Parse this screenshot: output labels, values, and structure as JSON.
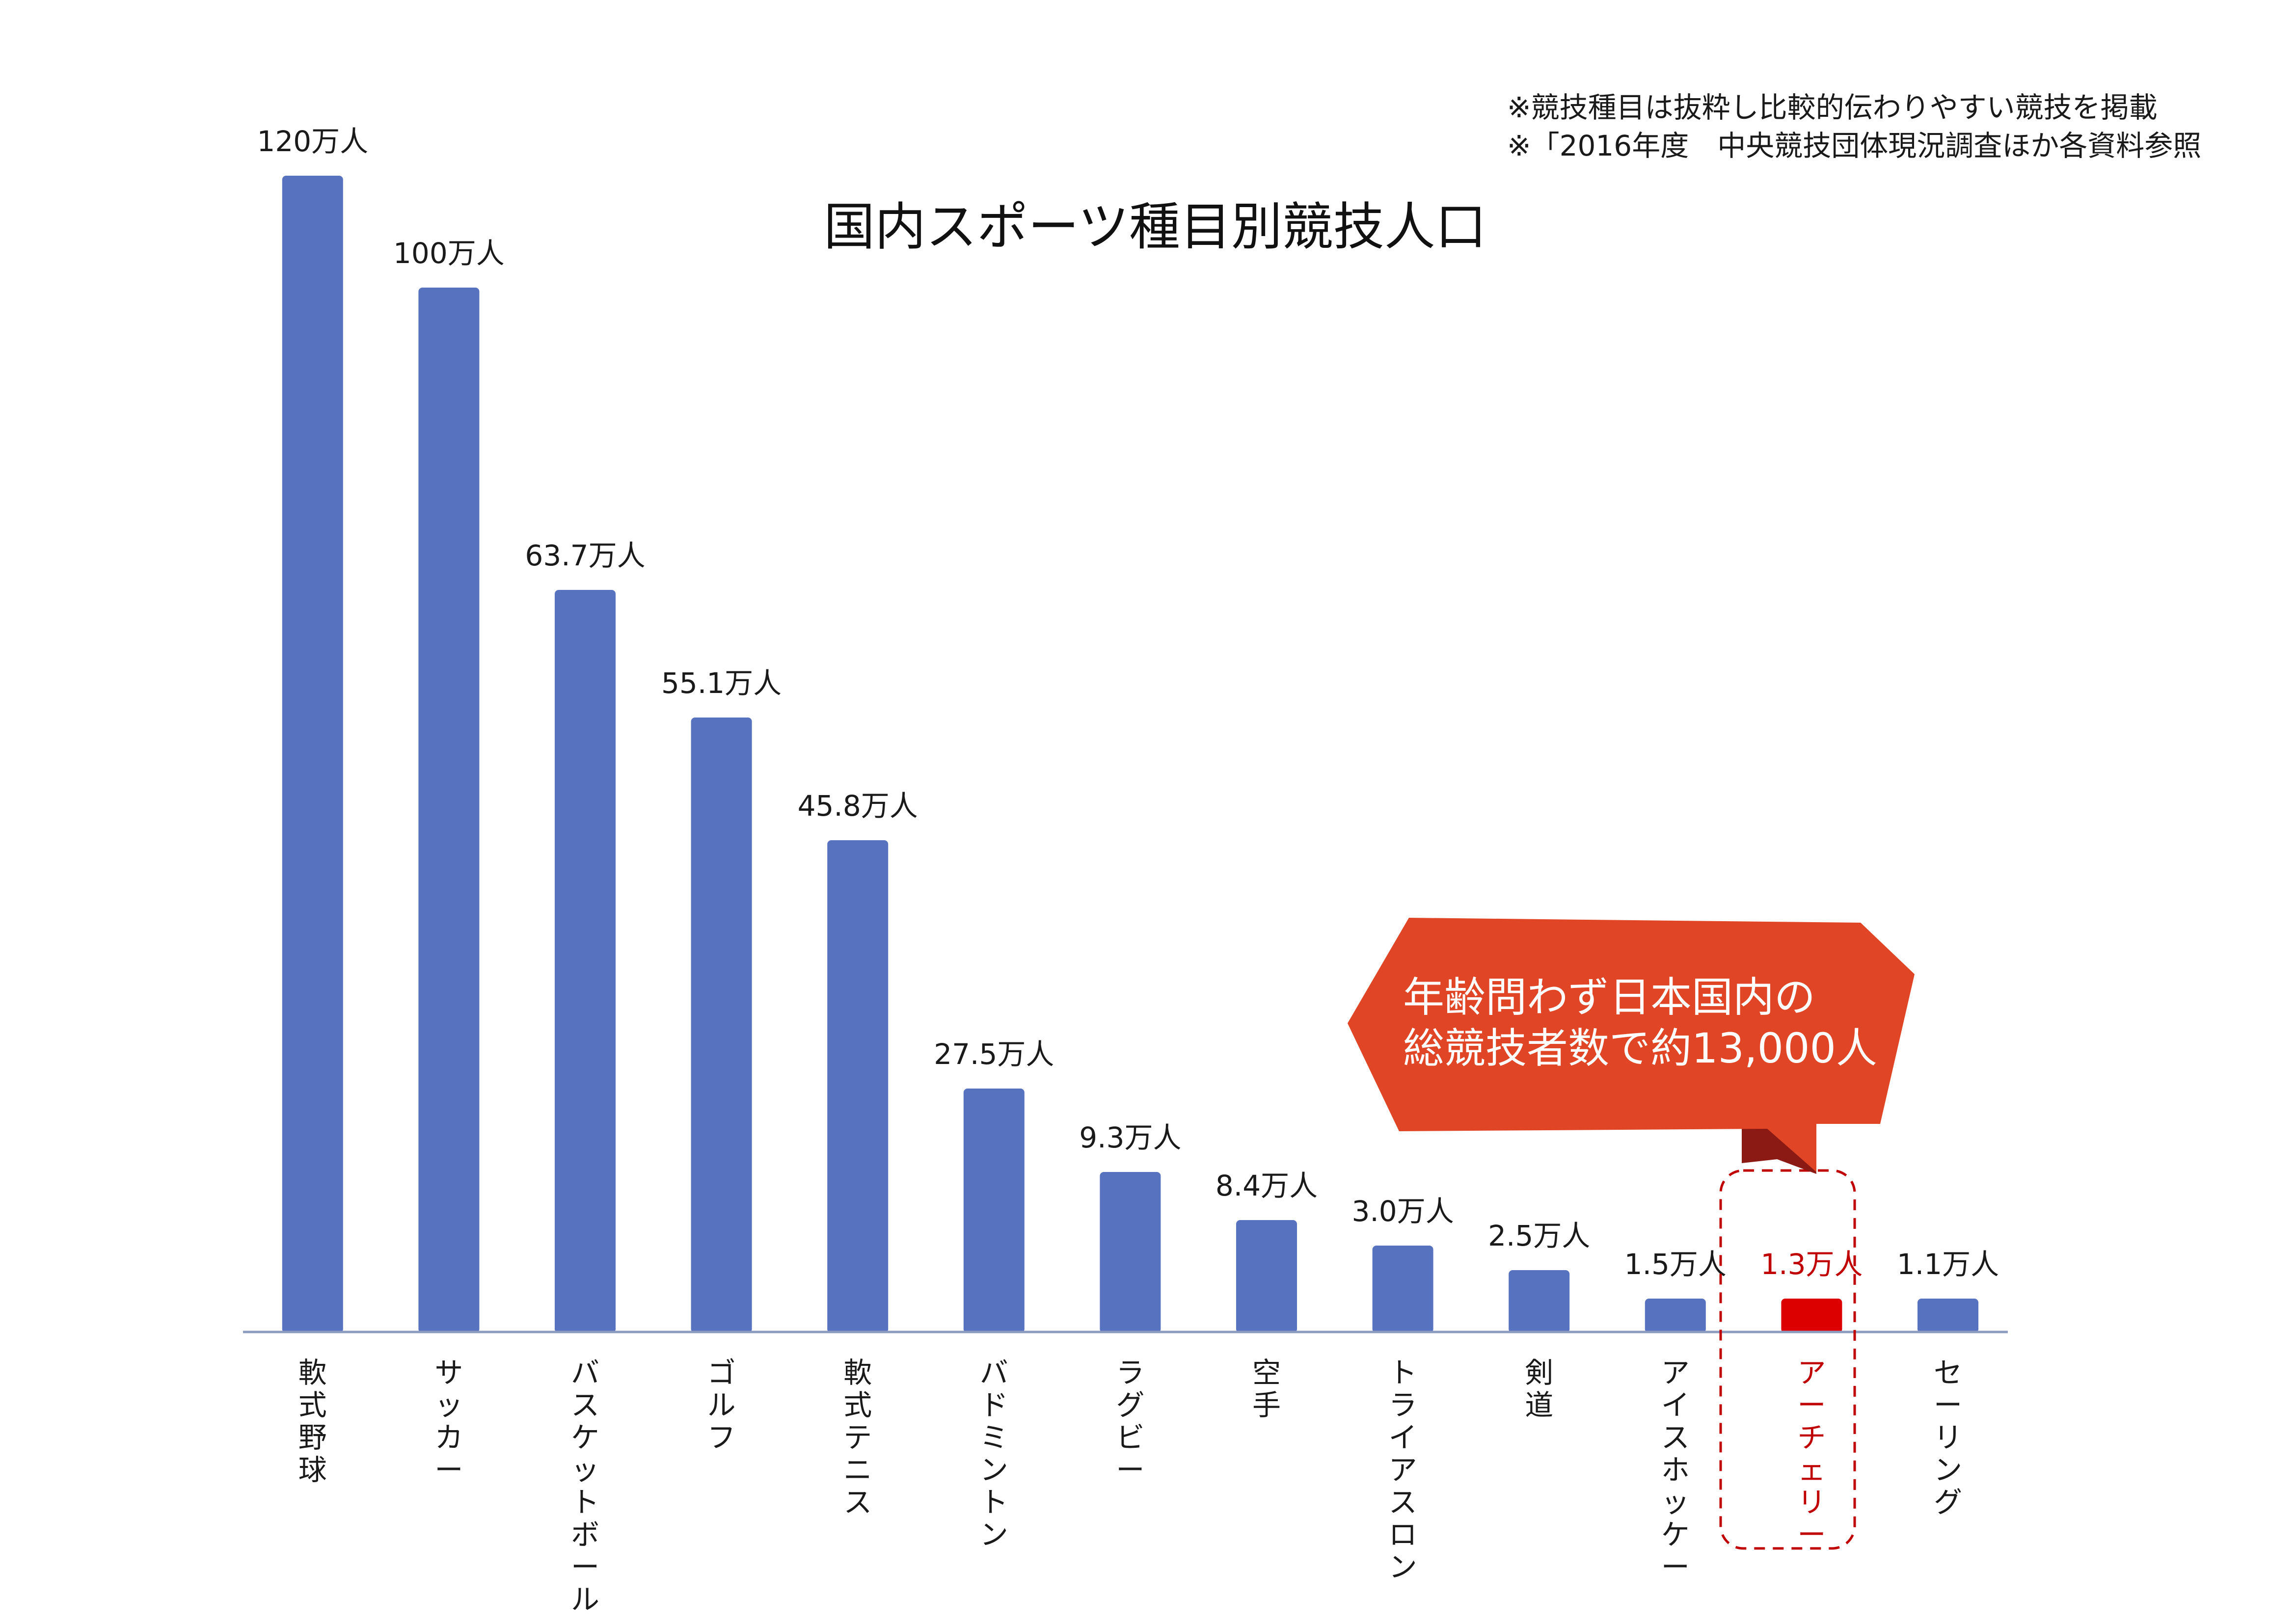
{
  "colors": {
    "bar": "#5773c0",
    "highlight_bar": "#dd0000",
    "highlight_text": "#c00000",
    "axis": "#8c9bbf",
    "callout": "#e04626",
    "callout_shadow": "#8b1a14",
    "dashed_frame": "#c00000"
  },
  "notes": [
    "※競技種目は抜粋し比較的伝わりやすい競技を掲載",
    "※「2016年度　中央競技団体現況調査ほか各資料参照"
  ],
  "callout": {
    "line1": "年齢問わず日本国内の",
    "line2": "総競技者数で約13,000人"
  },
  "chart_data": {
    "type": "bar",
    "title": "国内スポーツ種目別競技人口",
    "categories": [
      "軟式野球",
      "サッカー",
      "バスケットボール",
      "ゴルフ",
      "軟式テニス",
      "バドミントン",
      "ラグビー",
      "空手",
      "トライアスロン",
      "剣道",
      "アイスホッケー",
      "アーチェリー",
      "セーリング"
    ],
    "values": [
      120,
      100,
      63.7,
      55.1,
      45.8,
      27.5,
      9.3,
      8.4,
      3.0,
      2.5,
      1.5,
      1.3,
      1.1
    ],
    "data_labels": [
      "120万人",
      "100万人",
      "63.7万人",
      "55.1万人",
      "45.8万人",
      "27.5万人",
      "9.3万人",
      "8.4万人",
      "3.0万人",
      "2.5万人",
      "1.5万人",
      "1.3万人",
      "1.1万人"
    ],
    "unit": "万人",
    "highlight_category": "アーチェリー",
    "axis_break": true,
    "legend": "none",
    "grid": false
  }
}
